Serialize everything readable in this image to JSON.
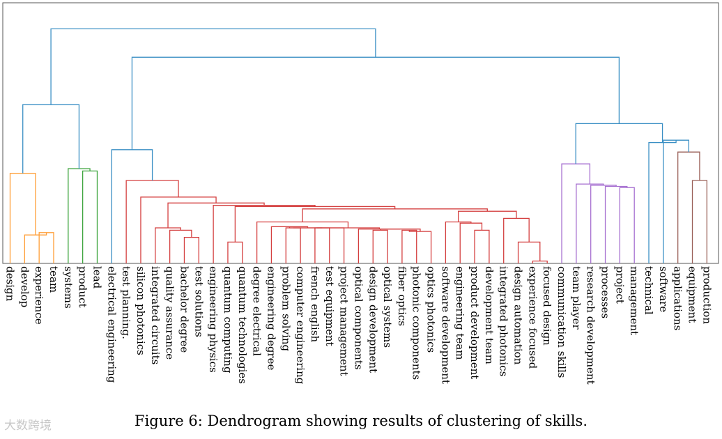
{
  "chart_data": {
    "type": "dendrogram",
    "title": "",
    "caption": "Figure 6: Dendrogram showing results of clustering of skills.",
    "leaves": [
      "design",
      "develop",
      "experience",
      "team",
      "systems",
      "product",
      "lead",
      "electrical engineering",
      "test planning.",
      "silicon photonics",
      "integrated circuits",
      "quality assurance",
      "bachelor degree",
      "test solutions",
      "engineering physics",
      "quantum computing",
      "quantum technologies",
      "degree electrical",
      "engineering degree",
      "problem solving",
      "computer engineering",
      "french english",
      "test equipment",
      "project management",
      "optical components",
      "design development",
      "optical systems",
      "fiber optics",
      "photonic components",
      "optics photonics",
      "software development",
      "engineering team",
      "product development",
      "development team",
      "integrated photonics",
      "design automation",
      "experience focused",
      "focused design",
      "communication skills",
      "team player",
      "research development",
      "processes",
      "project",
      "management",
      "technical",
      "software",
      "applications",
      "equipment",
      "production"
    ],
    "link_colors": {
      "orange": "#ff9f38",
      "green": "#3ea53e",
      "red": "#d43f3f",
      "purple": "#a66fd0",
      "brown": "#9a6058",
      "above_threshold": "#3a8fc4"
    },
    "links": [
      {
        "l": 2,
        "r": 3,
        "h": 0.13,
        "c": "orange"
      },
      {
        "l": 1,
        "r": 49,
        "h": 0.12,
        "c": "orange"
      },
      {
        "l": 0,
        "r": 50,
        "h": 0.38,
        "c": "orange"
      },
      {
        "l": 5,
        "r": 6,
        "h": 0.39,
        "c": "green"
      },
      {
        "l": 4,
        "r": 52,
        "h": 0.4,
        "c": "green"
      },
      {
        "l": 12,
        "r": 13,
        "h": 0.11,
        "c": "red"
      },
      {
        "l": 11,
        "r": 54,
        "h": 0.14,
        "c": "red"
      },
      {
        "l": 10,
        "r": 55,
        "h": 0.15,
        "c": "red"
      },
      {
        "l": 15,
        "r": 16,
        "h": 0.09,
        "c": "red"
      },
      {
        "l": 19,
        "r": 20,
        "h": 0.15,
        "c": "red"
      },
      {
        "l": 21,
        "r": 22,
        "h": 0.15,
        "c": "red"
      },
      {
        "l": 58,
        "r": 59,
        "h": 0.15,
        "c": "red"
      },
      {
        "l": 18,
        "r": 60,
        "h": 0.155,
        "c": "red"
      },
      {
        "l": 61,
        "r": 23,
        "h": 0.15,
        "c": "red"
      },
      {
        "l": 25,
        "r": 26,
        "h": 0.14,
        "c": "red"
      },
      {
        "l": 27,
        "r": 28,
        "h": 0.14,
        "c": "red"
      },
      {
        "l": 64,
        "r": 29,
        "h": 0.135,
        "c": "red"
      },
      {
        "l": 63,
        "r": 65,
        "h": 0.145,
        "c": "red"
      },
      {
        "l": 24,
        "r": 66,
        "h": 0.145,
        "c": "red"
      },
      {
        "l": 62,
        "r": 67,
        "h": 0.15,
        "c": "red"
      },
      {
        "l": 17,
        "r": 68,
        "h": 0.175,
        "c": "red"
      },
      {
        "l": 32,
        "r": 33,
        "h": 0.14,
        "c": "red"
      },
      {
        "l": 31,
        "r": 70,
        "h": 0.17,
        "c": "red"
      },
      {
        "l": 30,
        "r": 71,
        "h": 0.175,
        "c": "red"
      },
      {
        "l": 36,
        "r": 37,
        "h": 0.01,
        "c": "red"
      },
      {
        "l": 35,
        "r": 73,
        "h": 0.09,
        "c": "red"
      },
      {
        "l": 34,
        "r": 74,
        "h": 0.19,
        "c": "red"
      },
      {
        "l": 72,
        "r": 75,
        "h": 0.22,
        "c": "red"
      },
      {
        "l": 69,
        "r": 76,
        "h": 0.23,
        "c": "red"
      },
      {
        "l": 57,
        "r": 77,
        "h": 0.24,
        "c": "red"
      },
      {
        "l": 14,
        "r": 78,
        "h": 0.245,
        "c": "red"
      },
      {
        "l": 56,
        "r": 79,
        "h": 0.255,
        "c": "red"
      },
      {
        "l": 9,
        "r": 80,
        "h": 0.28,
        "c": "red"
      },
      {
        "l": 8,
        "r": 81,
        "h": 0.35,
        "c": "red"
      },
      {
        "l": 7,
        "r": 82,
        "h": 0.48,
        "c": "above_threshold"
      },
      {
        "l": 42,
        "r": 43,
        "h": 0.32,
        "c": "purple"
      },
      {
        "l": 41,
        "r": 84,
        "h": 0.325,
        "c": "purple"
      },
      {
        "l": 40,
        "r": 85,
        "h": 0.33,
        "c": "purple"
      },
      {
        "l": 39,
        "r": 86,
        "h": 0.335,
        "c": "purple"
      },
      {
        "l": 38,
        "r": 87,
        "h": 0.42,
        "c": "purple"
      },
      {
        "l": 47,
        "r": 48,
        "h": 0.35,
        "c": "brown"
      },
      {
        "l": 46,
        "r": 89,
        "h": 0.47,
        "c": "brown"
      },
      {
        "l": 45,
        "r": 90,
        "h": 0.52,
        "c": "above_threshold"
      },
      {
        "l": 44,
        "r": 91,
        "h": 0.51,
        "c": "above_threshold"
      },
      {
        "l": 88,
        "r": 92,
        "h": 0.59,
        "c": "above_threshold"
      },
      {
        "l": 83,
        "r": 93,
        "h": 0.87,
        "c": "above_threshold"
      },
      {
        "l": 51,
        "r": 53,
        "h": 0.67,
        "c": "above_threshold"
      },
      {
        "l": 95,
        "r": 94,
        "h": 0.99,
        "c": "above_threshold"
      }
    ],
    "ylim": [
      0,
      1.1
    ],
    "xlabel": "",
    "ylabel": ""
  },
  "watermark": "大数跨境"
}
